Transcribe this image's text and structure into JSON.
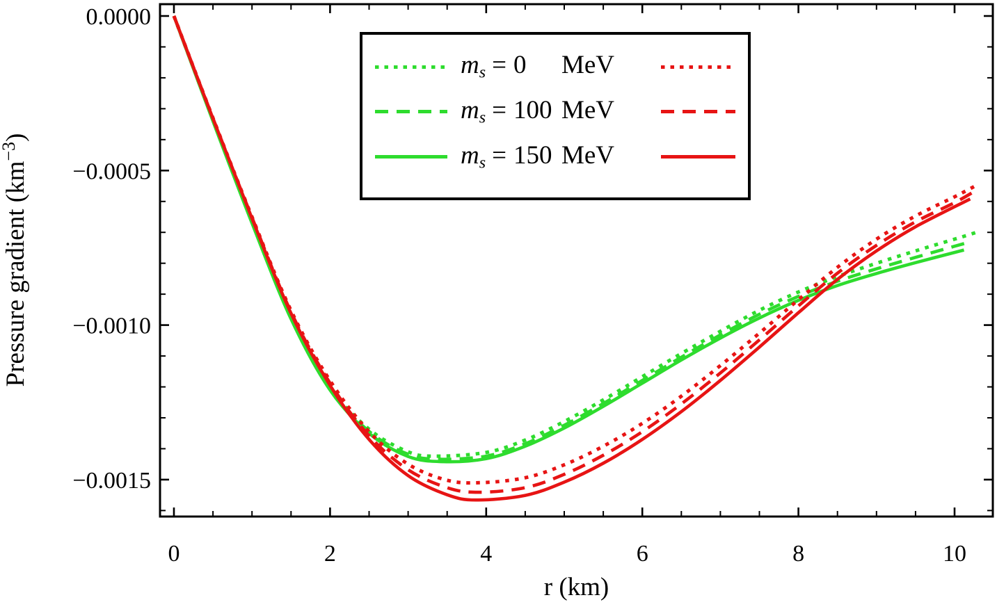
{
  "figure": {
    "background": "#ffffff",
    "frame_color": "#000000",
    "text_color": "#000000",
    "green": "#2edc2e",
    "red": "#e71414"
  },
  "chart_data": {
    "type": "line",
    "title": "",
    "xlabel": "r (km)",
    "ylabel": {
      "prefix": "Pressure gradient (km",
      "superscript": "−3",
      "suffix": ")"
    },
    "xlim": [
      0,
      10.49
    ],
    "ylim": [
      -0.001619,
      3.8e-05
    ],
    "grid": false,
    "legend_position": "top-center-inside",
    "x_major_ticks": [
      0,
      2,
      4,
      6,
      8,
      10
    ],
    "x_tick_labels": [
      "0",
      "2",
      "4",
      "6",
      "8",
      "10"
    ],
    "x_minor_step": 0.5,
    "y_major_ticks": [
      0,
      -0.0005,
      -0.001,
      -0.0015
    ],
    "y_tick_labels": [
      "0.0000",
      "−0.0005",
      "−0.0010",
      "−0.0015"
    ],
    "y_minor_step": 0.0001,
    "series": [
      {
        "name": "ms = 0 MeV (green)",
        "color": "#2edc2e",
        "dash": "dotted",
        "points": [
          [
            0,
            0
          ],
          [
            0.5,
            -0.000336
          ],
          [
            1,
            -0.000665
          ],
          [
            1.5,
            -0.000973
          ],
          [
            2,
            -0.0012
          ],
          [
            2.5,
            -0.001337
          ],
          [
            3,
            -0.00141
          ],
          [
            3.35,
            -0.001424
          ],
          [
            4,
            -0.001412
          ],
          [
            4.5,
            -0.001372
          ],
          [
            5,
            -0.001312
          ],
          [
            5.5,
            -0.001242
          ],
          [
            6,
            -0.001167
          ],
          [
            6.5,
            -0.001092
          ],
          [
            7,
            -0.00102
          ],
          [
            7.5,
            -0.000952
          ],
          [
            8,
            -0.000893
          ],
          [
            8.5,
            -0.000843
          ],
          [
            9,
            -0.0008
          ],
          [
            9.5,
            -0.00076
          ],
          [
            10,
            -0.000722
          ],
          [
            10.28,
            -0.0007
          ]
        ]
      },
      {
        "name": "ms = 100 MeV (green)",
        "color": "#2edc2e",
        "dash": "dashed",
        "points": [
          [
            0,
            0
          ],
          [
            0.5,
            -0.000338
          ],
          [
            1,
            -0.000668
          ],
          [
            1.5,
            -0.000977
          ],
          [
            2,
            -0.001206
          ],
          [
            2.5,
            -0.001344
          ],
          [
            3,
            -0.001418
          ],
          [
            3.4,
            -0.001434
          ],
          [
            4,
            -0.001424
          ],
          [
            4.5,
            -0.001384
          ],
          [
            5,
            -0.001324
          ],
          [
            5.5,
            -0.001254
          ],
          [
            6,
            -0.001179
          ],
          [
            6.5,
            -0.001104
          ],
          [
            7,
            -0.001032
          ],
          [
            7.5,
            -0.000965
          ],
          [
            8,
            -0.000907
          ],
          [
            8.5,
            -0.000858
          ],
          [
            9,
            -0.000818
          ],
          [
            9.5,
            -0.000781
          ],
          [
            10,
            -0.000745
          ],
          [
            10.2,
            -0.000731
          ]
        ]
      },
      {
        "name": "ms = 150 MeV (green)",
        "color": "#2edc2e",
        "dash": "solid",
        "points": [
          [
            0,
            0
          ],
          [
            0.5,
            -0.00034
          ],
          [
            1,
            -0.00067
          ],
          [
            1.5,
            -0.00098
          ],
          [
            2,
            -0.00121
          ],
          [
            2.5,
            -0.00135
          ],
          [
            3,
            -0.001425
          ],
          [
            3.45,
            -0.001442
          ],
          [
            4,
            -0.001432
          ],
          [
            4.5,
            -0.001392
          ],
          [
            5,
            -0.001333
          ],
          [
            5.5,
            -0.001263
          ],
          [
            6,
            -0.001188
          ],
          [
            6.5,
            -0.001113
          ],
          [
            7,
            -0.001042
          ],
          [
            7.5,
            -0.000977
          ],
          [
            8,
            -0.00092
          ],
          [
            8.5,
            -0.000872
          ],
          [
            9,
            -0.000833
          ],
          [
            9.5,
            -0.000798
          ],
          [
            10.12,
            -0.000757
          ]
        ]
      },
      {
        "name": "ms = 0 MeV (red)",
        "color": "#e71414",
        "dash": "dotted",
        "points": [
          [
            0,
            0
          ],
          [
            0.5,
            -0.00033
          ],
          [
            1,
            -0.00065
          ],
          [
            1.5,
            -0.000953
          ],
          [
            2,
            -0.00118
          ],
          [
            2.5,
            -0.001345
          ],
          [
            3,
            -0.00145
          ],
          [
            3.5,
            -0.001502
          ],
          [
            3.92,
            -0.00151
          ],
          [
            4.5,
            -0.001494
          ],
          [
            5,
            -0.001452
          ],
          [
            5.5,
            -0.001392
          ],
          [
            6,
            -0.001318
          ],
          [
            6.5,
            -0.00123
          ],
          [
            7,
            -0.001131
          ],
          [
            7.5,
            -0.001026
          ],
          [
            8,
            -0.000918
          ],
          [
            8.5,
            -0.000813
          ],
          [
            9,
            -0.000722
          ],
          [
            9.5,
            -0.000647
          ],
          [
            10,
            -0.000585
          ],
          [
            10.3,
            -0.000545
          ]
        ]
      },
      {
        "name": "ms = 100 MeV (red)",
        "color": "#e71414",
        "dash": "dashed",
        "points": [
          [
            0,
            0
          ],
          [
            0.5,
            -0.000331
          ],
          [
            1,
            -0.000652
          ],
          [
            1.5,
            -0.000958
          ],
          [
            2,
            -0.001188
          ],
          [
            2.5,
            -0.001358
          ],
          [
            3,
            -0.001468
          ],
          [
            3.5,
            -0.001526
          ],
          [
            3.9,
            -0.001541
          ],
          [
            4.5,
            -0.001526
          ],
          [
            5,
            -0.001483
          ],
          [
            5.5,
            -0.001421
          ],
          [
            6,
            -0.001345
          ],
          [
            6.5,
            -0.001255
          ],
          [
            7,
            -0.001155
          ],
          [
            7.5,
            -0.001048
          ],
          [
            8,
            -0.000938
          ],
          [
            8.5,
            -0.000832
          ],
          [
            9,
            -0.000742
          ],
          [
            9.5,
            -0.000666
          ],
          [
            10,
            -0.000604
          ],
          [
            10.25,
            -0.000568
          ]
        ]
      },
      {
        "name": "ms = 150 MeV (red)",
        "color": "#e71414",
        "dash": "solid",
        "points": [
          [
            0,
            0
          ],
          [
            0.5,
            -0.000332
          ],
          [
            1,
            -0.000655
          ],
          [
            1.5,
            -0.000962
          ],
          [
            2,
            -0.001195
          ],
          [
            2.5,
            -0.00137
          ],
          [
            3,
            -0.001487
          ],
          [
            3.5,
            -0.001549
          ],
          [
            3.87,
            -0.001566
          ],
          [
            4.5,
            -0.001551
          ],
          [
            5,
            -0.001508
          ],
          [
            5.5,
            -0.001447
          ],
          [
            6,
            -0.00137
          ],
          [
            6.5,
            -0.00128
          ],
          [
            7,
            -0.001179
          ],
          [
            7.5,
            -0.001071
          ],
          [
            8,
            -0.00096
          ],
          [
            8.5,
            -0.000852
          ],
          [
            9,
            -0.00076
          ],
          [
            9.5,
            -0.000682
          ],
          [
            10.2,
            -0.000592
          ]
        ]
      }
    ]
  },
  "legend": {
    "entries": [
      {
        "symbol": "m",
        "subscript": "s",
        "equals": "=",
        "value": "0",
        "unit": "MeV",
        "style": "dotted",
        "left_color": "#2edc2e",
        "right_color": "#e71414"
      },
      {
        "symbol": "m",
        "subscript": "s",
        "equals": "=",
        "value": "100",
        "unit": "MeV",
        "style": "dashed",
        "left_color": "#2edc2e",
        "right_color": "#e71414"
      },
      {
        "symbol": "m",
        "subscript": "s",
        "equals": "=",
        "value": "150",
        "unit": "MeV",
        "style": "solid",
        "left_color": "#2edc2e",
        "right_color": "#e71414"
      }
    ]
  }
}
